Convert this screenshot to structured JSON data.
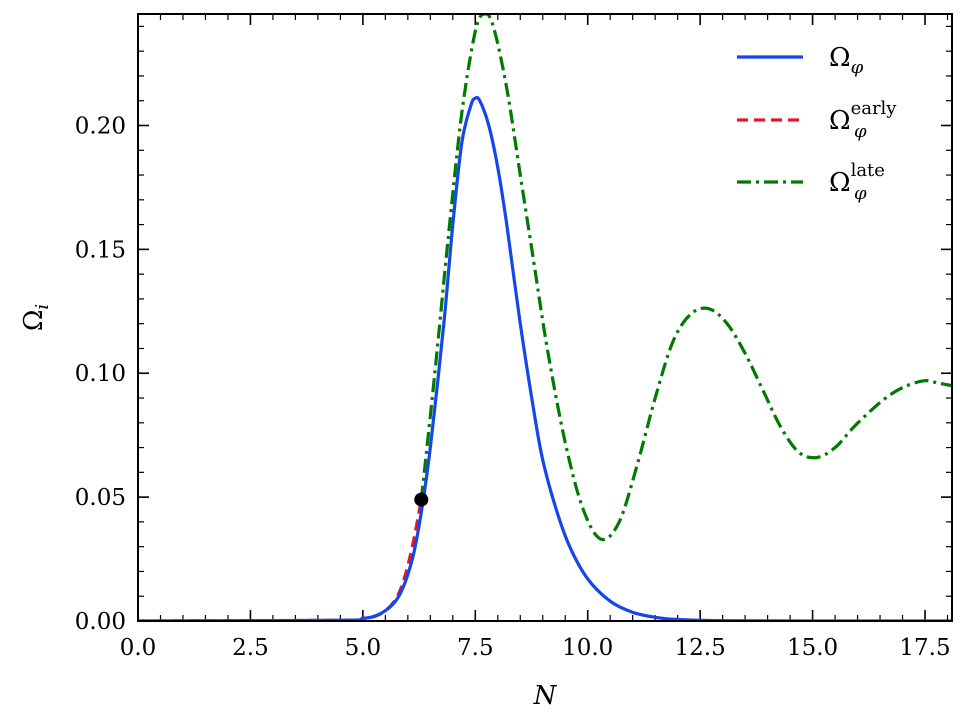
{
  "chart_data": {
    "type": "line",
    "title": "",
    "xlabel": "N",
    "ylabel": {
      "main": "Ω",
      "sub": "i"
    },
    "xlim": [
      0,
      18.1
    ],
    "ylim": [
      0,
      0.245
    ],
    "xticks": [
      0,
      2.5,
      5,
      7.5,
      10,
      12.5,
      15,
      17.5
    ],
    "xtick_labels": [
      "0.0",
      "2.5",
      "5.0",
      "7.5",
      "10.0",
      "12.5",
      "15.0",
      "17.5"
    ],
    "yticks": [
      0,
      0.05,
      0.1,
      0.15,
      0.2
    ],
    "ytick_labels": [
      "0.00",
      "0.05",
      "0.10",
      "0.15",
      "0.20"
    ],
    "grid": false,
    "legend_position": "top-right",
    "series": [
      {
        "name": "Ω_φ",
        "legend": {
          "main": "Ω",
          "sub": "φ",
          "sup": ""
        },
        "color": "#1446eb",
        "dash": "solid",
        "x": [
          0,
          4.5,
          5.0,
          5.4,
          5.8,
          6.1,
          6.3,
          6.5,
          6.8,
          7.0,
          7.2,
          7.4,
          7.5,
          7.6,
          7.8,
          8.0,
          8.2,
          8.5,
          8.8,
          9.0,
          9.3,
          9.6,
          10.0,
          10.5,
          11.0,
          11.5,
          12.0,
          13.0,
          15.0,
          18.1
        ],
        "y": [
          0,
          0.0003,
          0.001,
          0.003,
          0.01,
          0.025,
          0.044,
          0.07,
          0.12,
          0.16,
          0.193,
          0.208,
          0.211,
          0.21,
          0.2,
          0.183,
          0.16,
          0.12,
          0.085,
          0.065,
          0.045,
          0.03,
          0.017,
          0.008,
          0.0035,
          0.0015,
          0.0006,
          0.0001,
          0.0,
          0.0
        ]
      },
      {
        "name": "Ω_φ^early",
        "legend": {
          "main": "Ω",
          "sub": "φ",
          "sup": "early"
        },
        "color": "#e2182b",
        "dash": "dashed",
        "x": [
          0,
          4.5,
          5.0,
          5.4,
          5.7,
          5.9,
          6.1,
          6.3
        ],
        "y": [
          0,
          0.0003,
          0.001,
          0.003,
          0.008,
          0.016,
          0.03,
          0.049
        ]
      },
      {
        "name": "Ω_φ^late",
        "legend": {
          "main": "Ω",
          "sub": "φ",
          "sup": "late"
        },
        "color": "#007a00",
        "dash": "dashdot",
        "x": [
          6.3,
          6.6,
          6.9,
          7.2,
          7.5,
          7.7,
          7.9,
          8.2,
          8.5,
          8.8,
          9.1,
          9.5,
          9.9,
          10.3,
          10.7,
          11.1,
          11.5,
          11.9,
          12.3,
          12.7,
          13.1,
          13.5,
          13.9,
          14.3,
          14.7,
          15.1,
          15.5,
          15.9,
          16.3,
          16.7,
          17.1,
          17.5,
          17.8,
          18.1
        ],
        "y": [
          0.049,
          0.1,
          0.155,
          0.205,
          0.238,
          0.245,
          0.24,
          0.215,
          0.18,
          0.145,
          0.11,
          0.072,
          0.045,
          0.033,
          0.04,
          0.063,
          0.09,
          0.113,
          0.124,
          0.126,
          0.12,
          0.108,
          0.093,
          0.078,
          0.068,
          0.066,
          0.07,
          0.078,
          0.085,
          0.091,
          0.095,
          0.097,
          0.096,
          0.095
        ]
      }
    ],
    "markers": [
      {
        "x": 6.3,
        "y": 0.049,
        "color": "#000000"
      }
    ]
  }
}
